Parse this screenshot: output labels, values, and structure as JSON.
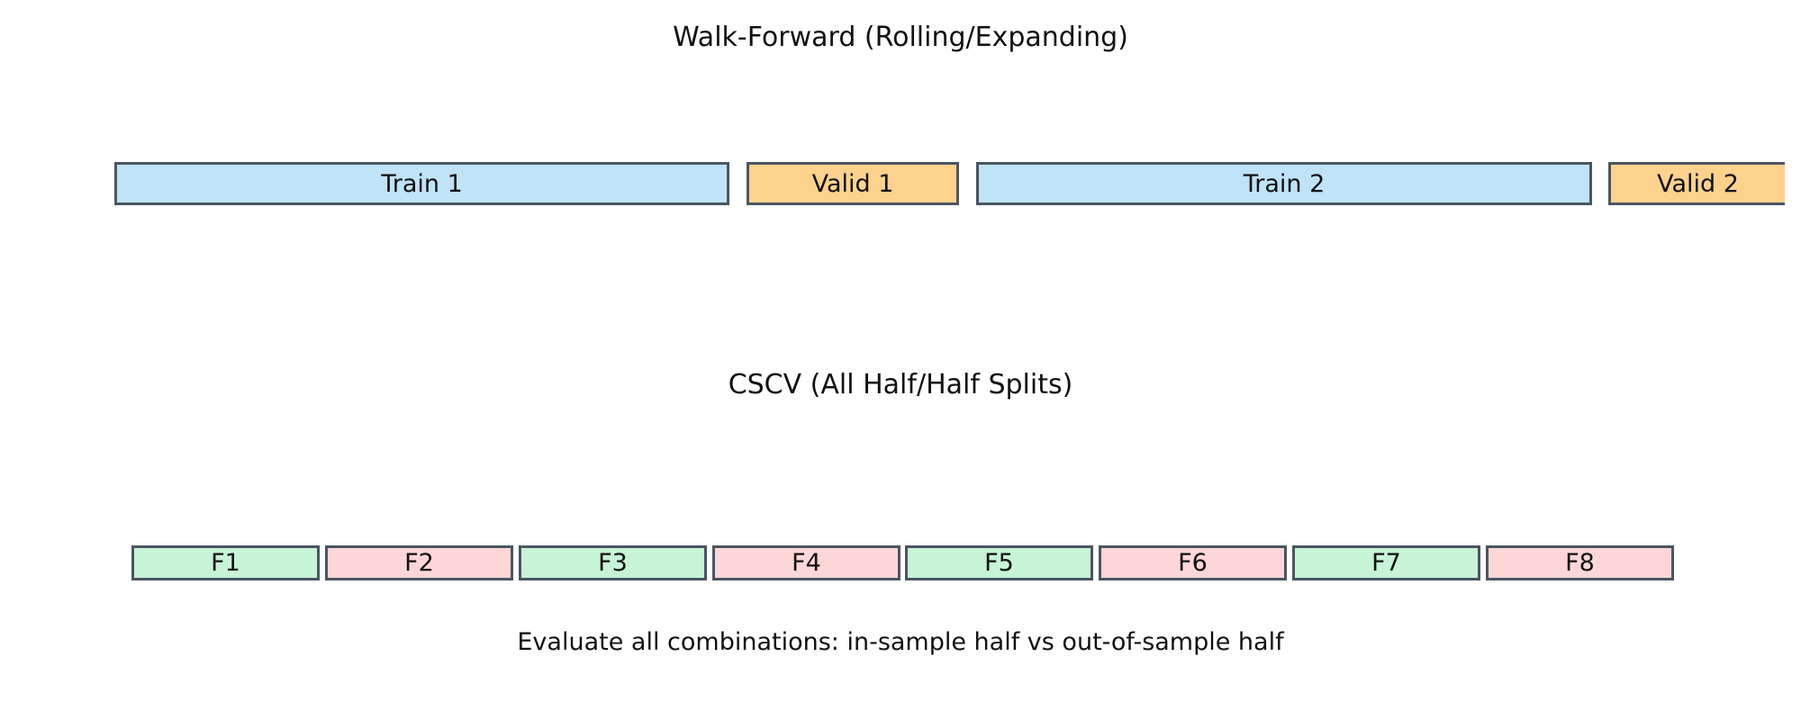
{
  "walk_forward": {
    "title": "Walk-Forward (Rolling/Expanding)",
    "blocks": [
      {
        "label": "Train 1",
        "kind": "train",
        "color": "#bfe3f7"
      },
      {
        "label": "Valid 1",
        "kind": "valid",
        "color": "#fcd28c"
      },
      {
        "label": "Train 2",
        "kind": "train",
        "color": "#bfe3f7"
      },
      {
        "label": "Valid 2",
        "kind": "valid",
        "color": "#fcd28c"
      }
    ]
  },
  "cscv": {
    "title": "CSCV (All Half/Half Splits)",
    "folds": [
      {
        "label": "F1",
        "color": "#c7f3d6"
      },
      {
        "label": "F2",
        "color": "#fdd6d8"
      },
      {
        "label": "F3",
        "color": "#c7f3d6"
      },
      {
        "label": "F4",
        "color": "#fdd6d8"
      },
      {
        "label": "F5",
        "color": "#c7f3d6"
      },
      {
        "label": "F6",
        "color": "#fdd6d8"
      },
      {
        "label": "F7",
        "color": "#c7f3d6"
      },
      {
        "label": "F8",
        "color": "#fdd6d8"
      }
    ],
    "caption": "Evaluate all combinations: in-sample half vs out-of-sample half"
  },
  "colors": {
    "border": "#4b5563",
    "train": "#bfe3f7",
    "valid": "#fcd28c",
    "in_sample_fold": "#c7f3d6",
    "out_of_sample_fold": "#fdd6d8"
  }
}
